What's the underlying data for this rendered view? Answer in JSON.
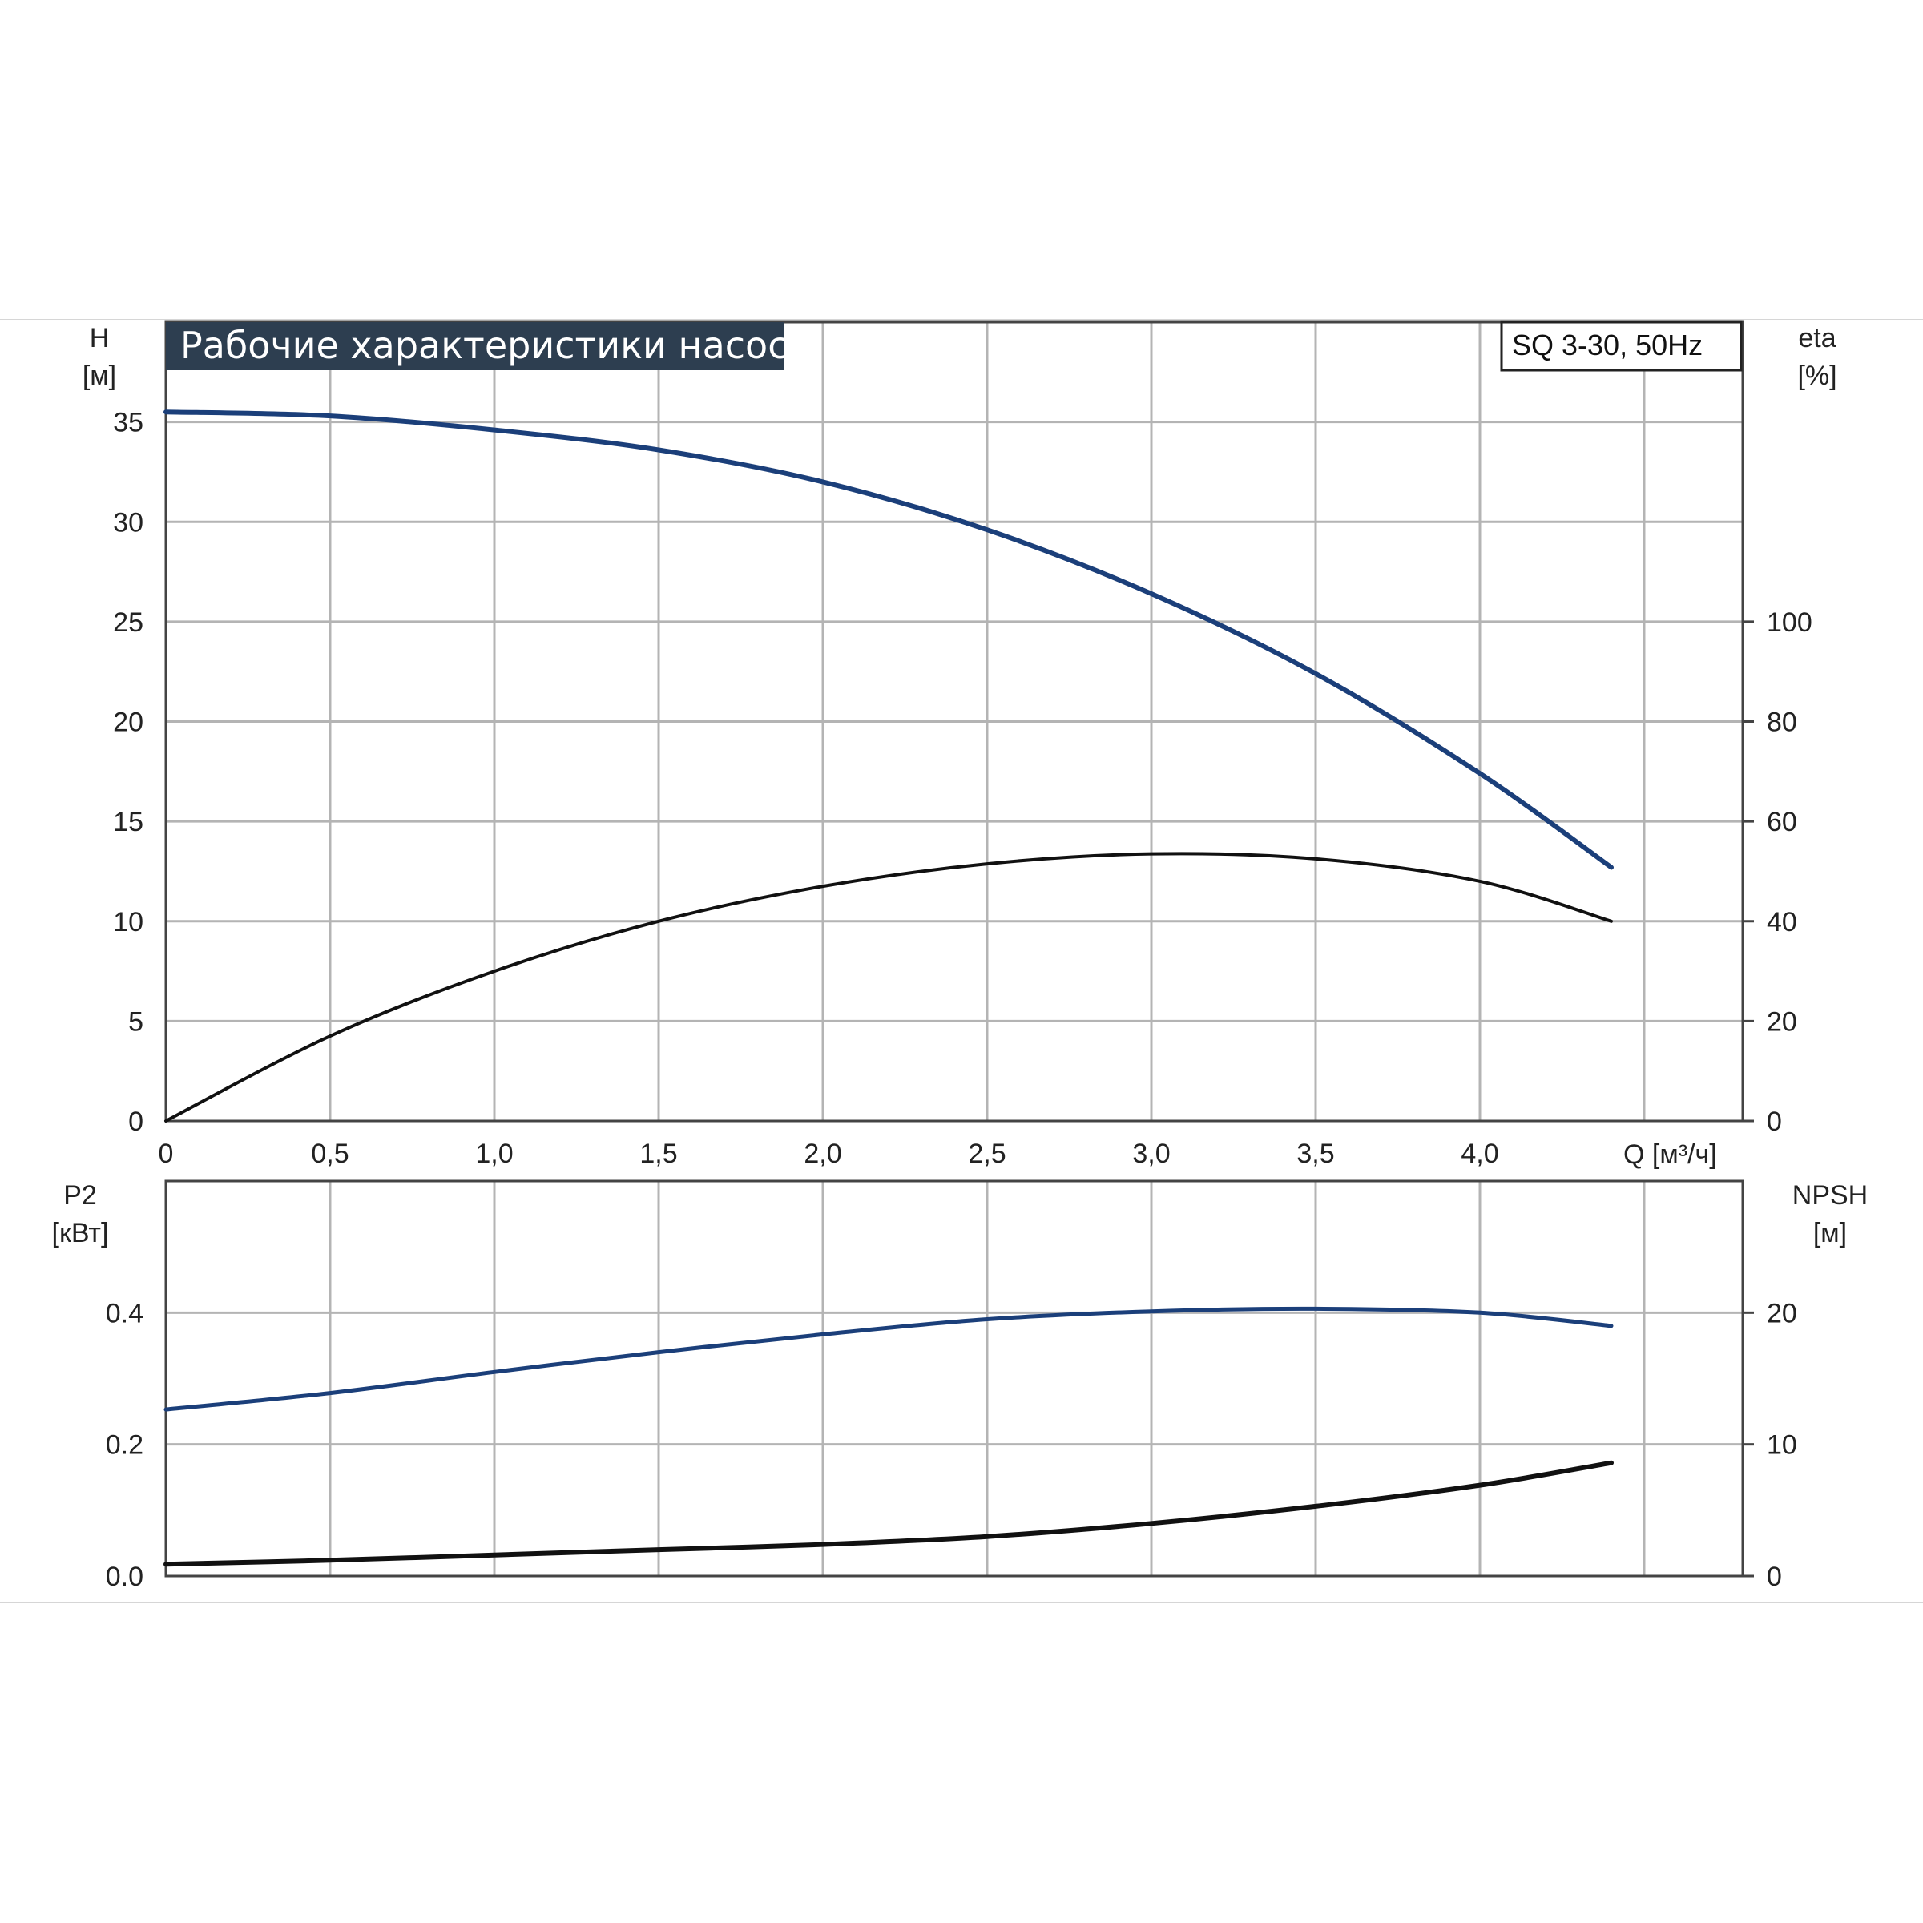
{
  "chart_data": [
    {
      "type": "line",
      "title": "Рабочие характеристики насоса",
      "model_label": "SQ 3-30, 50Hz",
      "x_axis": {
        "label": "Q [м³/ч]",
        "range": [
          0,
          4.8
        ],
        "ticks": [
          "0",
          "0,5",
          "1,0",
          "1,5",
          "2,0",
          "2,5",
          "3,0",
          "3,5",
          "4,0"
        ],
        "tick_values": [
          0,
          0.5,
          1.0,
          1.5,
          2.0,
          2.5,
          3.0,
          3.5,
          4.0
        ]
      },
      "y_left": {
        "label_line1": "H",
        "label_line2": "[м]",
        "range": [
          0,
          40
        ],
        "ticks": [
          "0",
          "5",
          "10",
          "15",
          "20",
          "25",
          "30",
          "35"
        ],
        "tick_values": [
          0,
          5,
          10,
          15,
          20,
          25,
          30,
          35
        ]
      },
      "y_right": {
        "label_line1": "eta",
        "label_line2": "[%]",
        "range": [
          0,
          160
        ],
        "ticks": [
          "0",
          "20",
          "40",
          "60",
          "80",
          "100"
        ],
        "tick_values": [
          0,
          20,
          40,
          60,
          80,
          100
        ]
      },
      "grid": true,
      "series": [
        {
          "axis": "left",
          "color": "#1b3f7a",
          "x": [
            0,
            0.5,
            1.0,
            1.5,
            2.0,
            2.5,
            3.0,
            3.5,
            4.0,
            4.4
          ],
          "y": [
            35.5,
            35.3,
            34.6,
            33.6,
            32.0,
            29.6,
            26.4,
            22.4,
            17.4,
            12.7
          ]
        },
        {
          "axis": "right",
          "color": "#111111",
          "x": [
            0,
            0.5,
            1.0,
            1.5,
            2.0,
            2.5,
            3.0,
            3.5,
            4.0,
            4.4
          ],
          "y": [
            0,
            17,
            30,
            40,
            47,
            51.5,
            53.5,
            52.5,
            48,
            40
          ]
        }
      ]
    },
    {
      "type": "line",
      "x_axis": {
        "range": [
          0,
          4.8
        ],
        "tick_values": [
          0,
          0.5,
          1.0,
          1.5,
          2.0,
          2.5,
          3.0,
          3.5,
          4.0
        ]
      },
      "y_left": {
        "label_line1": "P2",
        "label_line2": "[кВт]",
        "range": [
          0,
          0.6
        ],
        "ticks": [
          "0.0",
          "0.2",
          "0.4"
        ],
        "tick_values": [
          0.0,
          0.2,
          0.4
        ]
      },
      "y_right": {
        "label_line1": "NPSH",
        "label_line2": "[м]",
        "range": [
          0,
          30
        ],
        "ticks": [
          "0",
          "10",
          "20"
        ],
        "tick_values": [
          0,
          10,
          20
        ]
      },
      "grid": true,
      "series": [
        {
          "axis": "left",
          "color": "#1b3f7a",
          "x": [
            0,
            0.5,
            1.0,
            1.5,
            2.0,
            2.5,
            3.0,
            3.5,
            4.0,
            4.4
          ],
          "y": [
            0.253,
            0.278,
            0.31,
            0.34,
            0.367,
            0.39,
            0.402,
            0.406,
            0.4,
            0.38
          ]
        },
        {
          "axis": "right",
          "color": "#111111",
          "x": [
            0,
            0.5,
            1.0,
            1.5,
            2.0,
            2.5,
            3.0,
            3.5,
            4.0,
            4.4
          ],
          "y": [
            0.9,
            1.2,
            1.6,
            2.0,
            2.4,
            3.0,
            4.0,
            5.3,
            6.9,
            8.6
          ]
        }
      ]
    }
  ]
}
